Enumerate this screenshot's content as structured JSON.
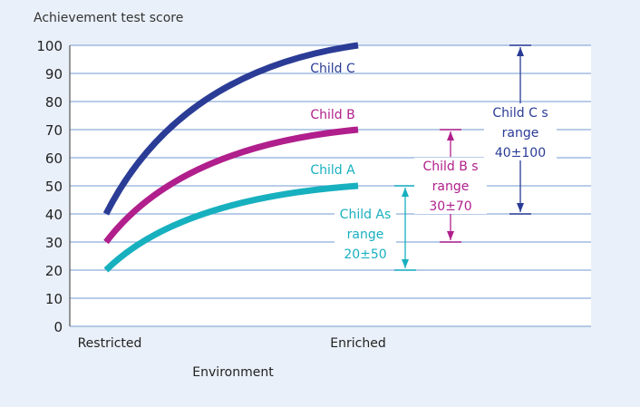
{
  "chart_data": {
    "type": "line",
    "title": "",
    "ylabel": "Achievement test score",
    "xlabel": "Environment",
    "ylim": [
      0,
      100
    ],
    "yticks": [
      0,
      10,
      20,
      30,
      40,
      50,
      60,
      70,
      80,
      90,
      100
    ],
    "categories": [
      "Restricted",
      "Enriched"
    ],
    "grid": true,
    "series": [
      {
        "name": "Child A",
        "values": [
          20,
          50
        ],
        "color": "#17b0bf"
      },
      {
        "name": "Child B",
        "values": [
          30,
          70
        ],
        "color": "#b01f8c"
      },
      {
        "name": "Child C",
        "values": [
          40,
          100
        ],
        "color": "#2a3c96"
      }
    ],
    "annotations": [
      {
        "series": "Child A",
        "lines": [
          "Child As",
          "range",
          "20±50"
        ],
        "from": 50,
        "to": 20
      },
      {
        "series": "Child B",
        "lines": [
          "Child B s",
          "range",
          "30±70"
        ],
        "from": 70,
        "to": 30
      },
      {
        "series": "Child C",
        "lines": [
          "Child C s",
          "range",
          "40±100"
        ],
        "from": 100,
        "to": 40
      }
    ]
  }
}
